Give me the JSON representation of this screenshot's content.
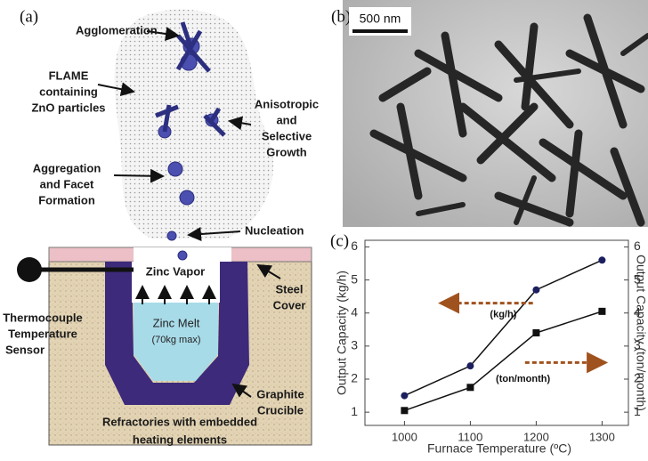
{
  "diagram": {
    "panel_label": "(a)",
    "agglomeration": "Agglomeration",
    "flame": [
      "FLAME",
      "containing",
      "ZnO particles"
    ],
    "growth": [
      "Anisotropic",
      "and",
      "Selective",
      "Growth"
    ],
    "aggregation": [
      "Aggregation",
      "and Facet",
      "Formation"
    ],
    "nucleation": "Nucleation",
    "zinc_vapor": "Zinc Vapor",
    "zinc_melt": [
      "Zinc Melt",
      "(70kg max)"
    ],
    "steel_cover": [
      "Steel",
      "Cover"
    ],
    "thermocouple": [
      "Thermocouple",
      "Temperature",
      "Sensor"
    ],
    "crucible": [
      "Graphite",
      "Crucible"
    ],
    "refractories": [
      "Refractories with embedded",
      "heating elements"
    ]
  },
  "micrograph": {
    "panel_label": "(b)",
    "scale_bar": "500 nm"
  },
  "chart_data": {
    "type": "line",
    "panel_label": "(c)",
    "x_label": "Furnace Temperature (ºC)",
    "y_label": "Output Capacity  (kg/h)",
    "y2_label": "Output Capacity (ton/month)",
    "x": [
      1000,
      1100,
      1200,
      1300
    ],
    "xlim": [
      940,
      1340
    ],
    "xticks": [
      1000,
      1100,
      1200,
      1300
    ],
    "ylim": [
      0.6,
      6.2
    ],
    "yticks": [
      1,
      2,
      3,
      4,
      5,
      6
    ],
    "y2lim": [
      0.6,
      6.2
    ],
    "y2ticks": [
      1,
      2,
      3,
      4,
      5,
      6
    ],
    "series": [
      {
        "name": "(kg/h)",
        "color": "#1c1f5e",
        "marker": "circle",
        "values": [
          1.5,
          2.4,
          4.7,
          5.6
        ]
      },
      {
        "name": "(ton/month)",
        "color": "#111111",
        "marker": "square",
        "axis": "y2",
        "values": [
          1.05,
          1.75,
          3.4,
          4.05
        ]
      }
    ],
    "annotation_color": "#a0521e"
  }
}
